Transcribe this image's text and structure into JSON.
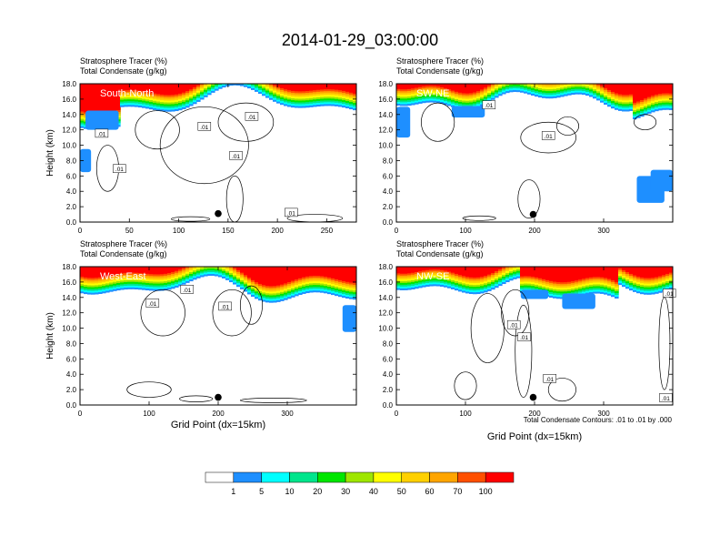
{
  "title": "2014-01-29_03:00:00",
  "xlabel": "Grid Point (dx=15km)",
  "footnote": "Total Condensate Contours: .01 to .01 by .000",
  "colors": [
    "#ffffff",
    "#1e8fff",
    "#00ffff",
    "#00e58c",
    "#00e600",
    "#9ee600",
    "#ffff00",
    "#ffd000",
    "#ffa500",
    "#ff5000",
    "#ff0000"
  ],
  "colorbar_labels": [
    "1",
    "5",
    "10",
    "20",
    "30",
    "40",
    "50",
    "60",
    "70",
    "100"
  ],
  "chart_data": [
    {
      "type": "heatmap",
      "name": "South-North",
      "subtitle1": "Stratosphere Tracer   (%)",
      "subtitle2": "Total Condensate   (g/kg)",
      "ylabel": "Height (km)",
      "xlim": [
        0,
        280
      ],
      "ylim": [
        0,
        18
      ],
      "xticks": [
        "0",
        "50",
        "100",
        "150",
        "200",
        "250"
      ],
      "xtick_values": [
        0,
        50,
        100,
        150,
        200,
        250
      ],
      "yticks": [
        "0.0",
        "2.0",
        "4.0",
        "6.0",
        "8.0",
        "10.0",
        "12.0",
        "14.0",
        "16.0",
        "18.0"
      ],
      "contour_labels": [
        {
          "text": ".01",
          "x": 214,
          "y": 1.2
        },
        {
          "text": ".01",
          "x": 174,
          "y": 13.7
        },
        {
          "text": ".01",
          "x": 126,
          "y": 12.4
        },
        {
          "text": ".01",
          "x": 158,
          "y": 8.6
        },
        {
          "text": ".01",
          "x": 40,
          "y": 6.9
        },
        {
          "text": ".01",
          "x": 22,
          "y": 11.5
        }
      ],
      "marker": {
        "x": 140,
        "y": 1.1
      }
    },
    {
      "type": "heatmap",
      "name": "SW-NE",
      "subtitle1": "Stratosphere Tracer   (%)",
      "subtitle2": "Total Condensate   (g/kg)",
      "ylabel": "",
      "xlim": [
        0,
        400
      ],
      "ylim": [
        0,
        18
      ],
      "xticks": [
        "0",
        "100",
        "200",
        "300"
      ],
      "xtick_values": [
        0,
        100,
        200,
        300
      ],
      "yticks": [
        "0.0",
        "2.0",
        "4.0",
        "6.0",
        "8.0",
        "10.0",
        "12.0",
        "14.0",
        "16.0",
        "18.0"
      ],
      "contour_labels": [
        {
          "text": ".01",
          "x": 134,
          "y": 15.2
        },
        {
          "text": ".01",
          "x": 220,
          "y": 11.2
        }
      ],
      "marker": {
        "x": 198,
        "y": 1.0
      }
    },
    {
      "type": "heatmap",
      "name": "West-East",
      "subtitle1": "Stratosphere Tracer   (%)",
      "subtitle2": "Total Condensate   (g/kg)",
      "ylabel": "Height (km)",
      "xlim": [
        0,
        400
      ],
      "ylim": [
        0,
        18
      ],
      "xticks": [
        "0",
        "100",
        "200",
        "300"
      ],
      "xtick_values": [
        0,
        100,
        200,
        300
      ],
      "yticks": [
        "0.0",
        "2.0",
        "4.0",
        "6.0",
        "8.0",
        "10.0",
        "12.0",
        "14.0",
        "16.0",
        "18.0"
      ],
      "contour_labels": [
        {
          "text": ".01",
          "x": 155,
          "y": 15.0
        },
        {
          "text": ".01",
          "x": 105,
          "y": 13.2
        },
        {
          "text": ".01",
          "x": 210,
          "y": 12.8
        }
      ],
      "marker": {
        "x": 200,
        "y": 1.0
      }
    },
    {
      "type": "heatmap",
      "name": "NW-SE",
      "subtitle1": "Stratosphere Tracer   (%)",
      "subtitle2": "Total Condensate   (g/kg)",
      "ylabel": "",
      "xlim": [
        0,
        400
      ],
      "ylim": [
        0,
        18
      ],
      "xticks": [
        "0",
        "100",
        "200",
        "300"
      ],
      "xtick_values": [
        0,
        100,
        200,
        300
      ],
      "yticks": [
        "0.0",
        "2.0",
        "4.0",
        "6.0",
        "8.0",
        "10.0",
        "12.0",
        "14.0",
        "16.0",
        "18.0"
      ],
      "contour_labels": [
        {
          "text": ".01",
          "x": 395,
          "y": 14.5
        },
        {
          "text": ".01",
          "x": 170,
          "y": 10.4
        },
        {
          "text": ".01",
          "x": 185,
          "y": 8.8
        },
        {
          "text": ".01",
          "x": 222,
          "y": 3.4
        },
        {
          "text": ".01",
          "x": 390,
          "y": 0.9
        }
      ],
      "marker": {
        "x": 198,
        "y": 1.0
      }
    }
  ]
}
